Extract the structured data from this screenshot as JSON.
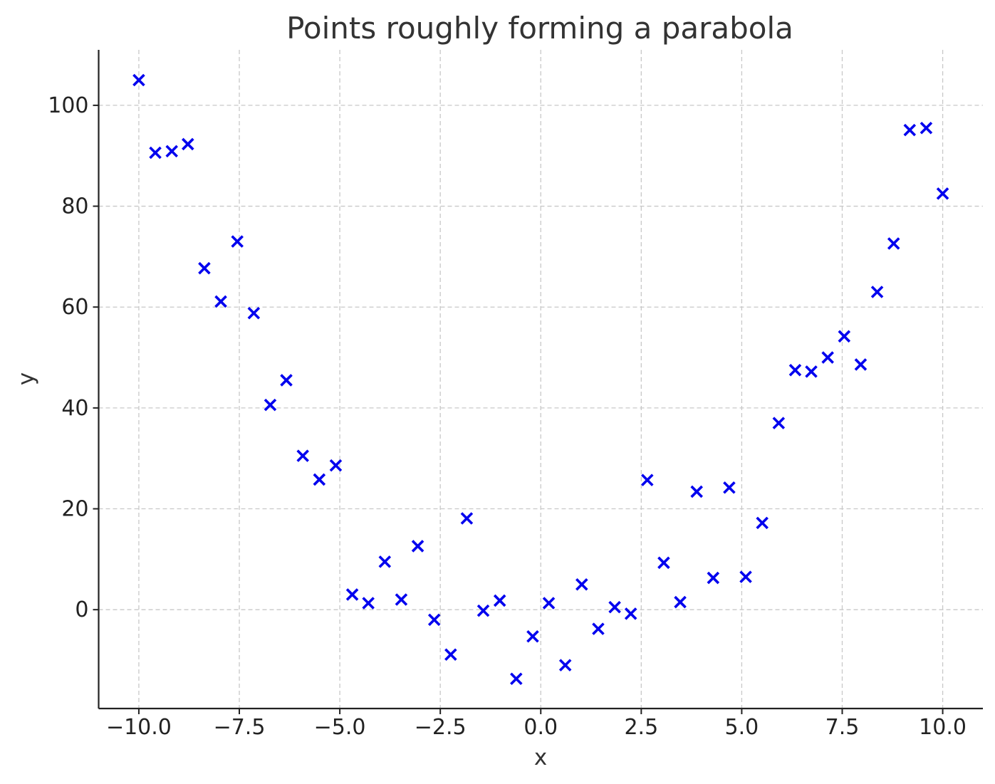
{
  "chart_data": {
    "type": "scatter",
    "title": "Points roughly forming a parabola",
    "xlabel": "x",
    "ylabel": "y",
    "xlim": [
      -11,
      11
    ],
    "ylim": [
      -19.6,
      111
    ],
    "xticks": [
      -10.0,
      -7.5,
      -5.0,
      -2.5,
      0.0,
      2.5,
      5.0,
      7.5,
      10.0
    ],
    "xtick_labels": [
      "−10.0",
      "−7.5",
      "−5.0",
      "−2.5",
      "0.0",
      "2.5",
      "5.0",
      "7.5",
      "10.0"
    ],
    "yticks": [
      0,
      20,
      40,
      60,
      80,
      100
    ],
    "ytick_labels": [
      "0",
      "20",
      "40",
      "60",
      "80",
      "100"
    ],
    "grid": true,
    "marker": "x",
    "color": "#0000ee",
    "x": [
      -10.0,
      -9.59,
      -9.18,
      -8.78,
      -8.37,
      -7.96,
      -7.55,
      -7.14,
      -6.73,
      -6.33,
      -5.92,
      -5.51,
      -5.1,
      -4.69,
      -4.29,
      -3.88,
      -3.47,
      -3.06,
      -2.65,
      -2.24,
      -1.84,
      -1.43,
      -1.02,
      -0.61,
      -0.2,
      0.2,
      0.61,
      1.02,
      1.43,
      1.84,
      2.24,
      2.65,
      3.06,
      3.47,
      3.88,
      4.29,
      4.69,
      5.1,
      5.51,
      5.92,
      6.33,
      6.73,
      7.14,
      7.55,
      7.96,
      8.37,
      8.78,
      9.18,
      9.59,
      10.0
    ],
    "y": [
      105.0,
      90.6,
      90.9,
      92.3,
      67.7,
      61.1,
      73.0,
      58.8,
      40.6,
      45.5,
      30.5,
      25.8,
      28.6,
      3.0,
      1.3,
      9.5,
      2.0,
      12.6,
      -2.0,
      -8.9,
      18.1,
      -0.2,
      1.8,
      -13.7,
      -5.3,
      1.3,
      -11.0,
      5.0,
      -3.8,
      0.5,
      -0.8,
      25.7,
      9.3,
      1.5,
      23.4,
      6.3,
      24.2,
      6.5,
      17.2,
      37.0,
      47.5,
      47.2,
      50.0,
      54.2,
      48.6,
      63.0,
      72.6,
      95.1,
      95.5,
      82.5
    ]
  }
}
